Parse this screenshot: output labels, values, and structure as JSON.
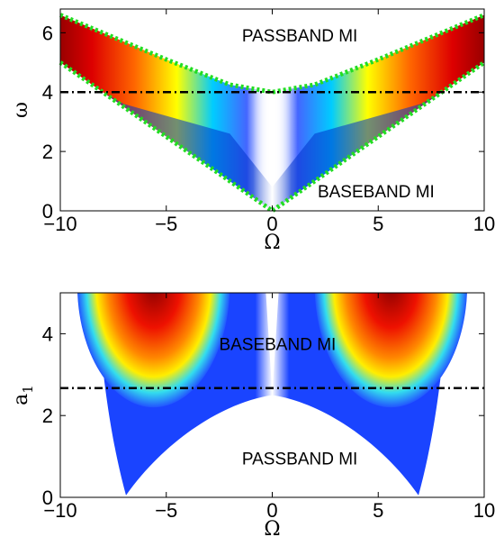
{
  "chart_data": [
    {
      "type": "heatmap",
      "xlabel": "Ω",
      "ylabel": "ω",
      "xlim": [
        -10,
        10
      ],
      "ylim": [
        0,
        6.8
      ],
      "xticks": [
        "−10",
        "−5",
        "0",
        "5",
        "10"
      ],
      "yticks": [
        "0",
        "2",
        "4",
        "6"
      ],
      "xtick_values": [
        -10,
        -5,
        0,
        5,
        10
      ],
      "ytick_values": [
        0,
        2,
        4,
        6
      ],
      "colormap": "jet",
      "annotations": [
        {
          "text": "PASSBAND MI",
          "x": 1.3,
          "y": 5.7
        },
        {
          "text": "BASEBAND MI",
          "x": 4.9,
          "y": 0.45
        }
      ],
      "reference_line": {
        "axis": "y",
        "value": 4.0,
        "style": "dash-dot",
        "color": "#000000"
      },
      "boundary": {
        "style": "dotted",
        "color": "#22dd22",
        "upper": [
          [
            -10,
            6.6
          ],
          [
            -5,
            5.1
          ],
          [
            -2,
            4.25
          ],
          [
            0,
            4.0
          ],
          [
            2,
            4.25
          ],
          [
            5,
            5.1
          ],
          [
            10,
            6.6
          ]
        ],
        "lower": [
          [
            -10,
            5.0
          ],
          [
            -5,
            2.5
          ],
          [
            0,
            0.0
          ],
          [
            5,
            2.5
          ],
          [
            10,
            5.0
          ]
        ]
      }
    },
    {
      "type": "heatmap",
      "xlabel": "Ω",
      "ylabel": "a",
      "ylabel_sub": "1",
      "xlim": [
        -10,
        10
      ],
      "ylim": [
        0,
        5
      ],
      "xticks": [
        "−10",
        "−5",
        "0",
        "5",
        "10"
      ],
      "yticks": [
        "0",
        "2",
        "4"
      ],
      "xtick_values": [
        -10,
        -5,
        0,
        5,
        10
      ],
      "ytick_values": [
        0,
        2,
        4
      ],
      "colormap": "jet",
      "annotations": [
        {
          "text": "BASEBAND MI",
          "x": 0.25,
          "y": 3.6
        },
        {
          "text": "PASSBAND MI",
          "x": 1.3,
          "y": 0.8
        }
      ],
      "reference_line": {
        "axis": "y",
        "value": 2.67,
        "style": "dash-dot",
        "color": "#000000"
      }
    }
  ]
}
